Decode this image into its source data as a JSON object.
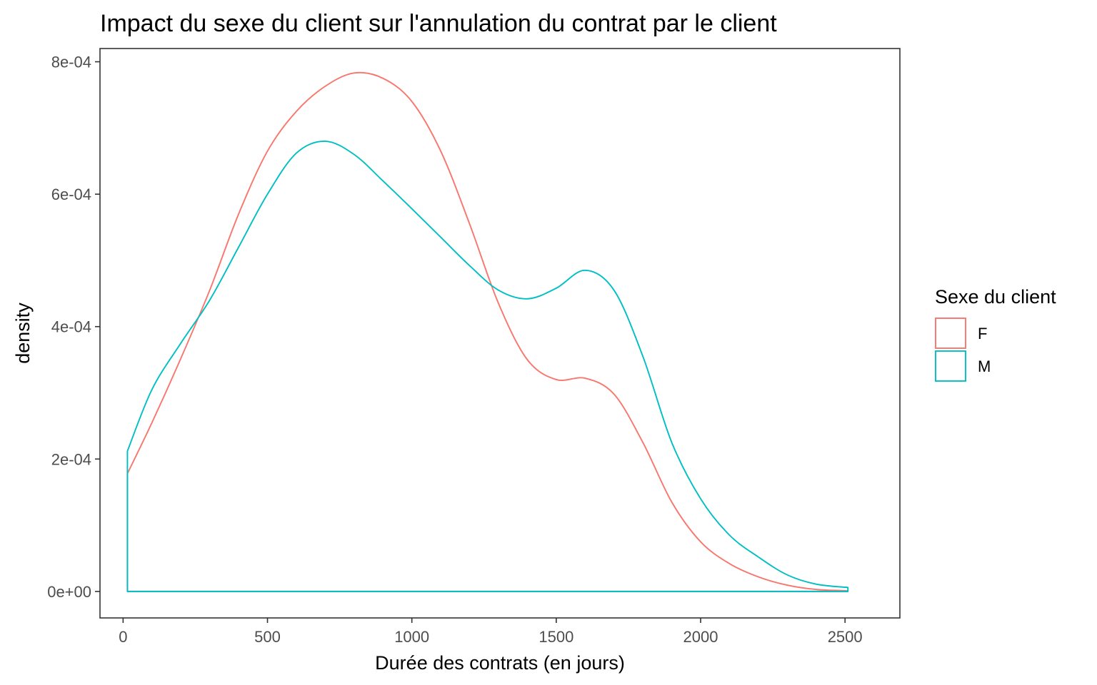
{
  "chart_data": {
    "type": "area",
    "title": "Impact du sexe du client sur l'annulation du contrat par le client",
    "xlabel": "Durée des contrats (en jours)",
    "ylabel": "density",
    "xlim": [
      -80,
      2690
    ],
    "ylim": [
      -4e-05,
      0.00082
    ],
    "x_ticks": [
      {
        "value": 0,
        "label": "0"
      },
      {
        "value": 500,
        "label": "500"
      },
      {
        "value": 1000,
        "label": "1000"
      },
      {
        "value": 1500,
        "label": "1500"
      },
      {
        "value": 2000,
        "label": "2000"
      },
      {
        "value": 2500,
        "label": "2500"
      }
    ],
    "y_ticks": [
      {
        "value": 0,
        "label": "0e+00"
      },
      {
        "value": 0.0002,
        "label": "2e-04"
      },
      {
        "value": 0.0004,
        "label": "4e-04"
      },
      {
        "value": 0.0006,
        "label": "6e-04"
      },
      {
        "value": 0.0008,
        "label": "8e-04"
      }
    ],
    "grid": false,
    "legend": {
      "title": "Sexe du client",
      "position": "right"
    },
    "series": [
      {
        "name": "F",
        "color": "#F8766D",
        "points": [
          [
            15,
            0.000178
          ],
          [
            100,
            0.000255
          ],
          [
            200,
            0.000352
          ],
          [
            300,
            0.000455
          ],
          [
            400,
            0.00057
          ],
          [
            500,
            0.000665
          ],
          [
            600,
            0.000725
          ],
          [
            700,
            0.000763
          ],
          [
            800,
            0.000783
          ],
          [
            900,
            0.000775
          ],
          [
            1000,
            0.00074
          ],
          [
            1100,
            0.000665
          ],
          [
            1200,
            0.000555
          ],
          [
            1300,
            0.000435
          ],
          [
            1400,
            0.00035
          ],
          [
            1500,
            0.00032
          ],
          [
            1600,
            0.000322
          ],
          [
            1700,
            0.000298
          ],
          [
            1800,
            0.000225
          ],
          [
            1900,
            0.000135
          ],
          [
            2000,
            7.5e-05
          ],
          [
            2100,
            4.2e-05
          ],
          [
            2200,
            2.2e-05
          ],
          [
            2300,
            9.5e-06
          ],
          [
            2400,
            3e-06
          ],
          [
            2510,
            1e-06
          ]
        ]
      },
      {
        "name": "M",
        "color": "#00BFC4",
        "points": [
          [
            15,
            0.000212
          ],
          [
            100,
            0.000305
          ],
          [
            200,
            0.000375
          ],
          [
            300,
            0.00044
          ],
          [
            400,
            0.00052
          ],
          [
            500,
            0.0006
          ],
          [
            600,
            0.000662
          ],
          [
            700,
            0.00068
          ],
          [
            800,
            0.00066
          ],
          [
            900,
            0.00062
          ],
          [
            1000,
            0.000578
          ],
          [
            1100,
            0.000535
          ],
          [
            1200,
            0.000492
          ],
          [
            1300,
            0.000455
          ],
          [
            1400,
            0.000442
          ],
          [
            1500,
            0.000458
          ],
          [
            1600,
            0.000485
          ],
          [
            1700,
            0.000455
          ],
          [
            1800,
            0.000355
          ],
          [
            1900,
            0.000225
          ],
          [
            2000,
            0.00014
          ],
          [
            2100,
            8.5e-05
          ],
          [
            2200,
            5.2e-05
          ],
          [
            2300,
            2.5e-05
          ],
          [
            2400,
            1.1e-05
          ],
          [
            2510,
            6e-06
          ]
        ]
      }
    ]
  }
}
